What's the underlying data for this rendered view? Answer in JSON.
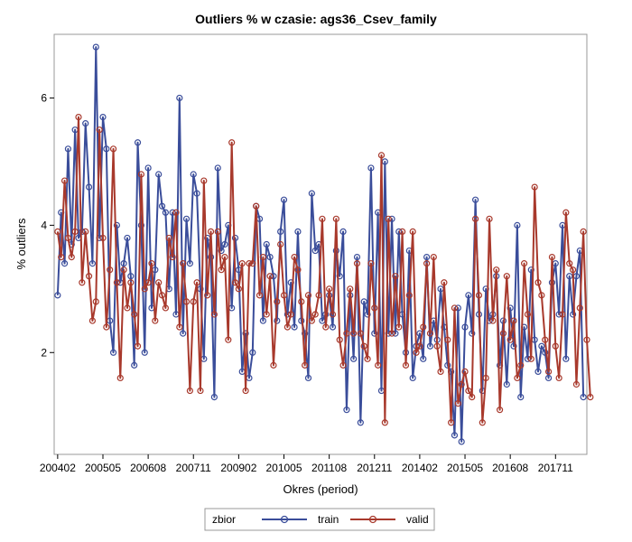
{
  "chart_data": {
    "type": "line",
    "title": "Outliers % w czasie: ags36_Csev_family",
    "xlabel": "Okres (period)",
    "ylabel": "% outliers",
    "xlim": [
      "200401",
      "201809"
    ],
    "ylim": [
      0.4,
      7.0
    ],
    "y_ticks": [
      "2",
      "4",
      "6"
    ],
    "x_ticks": [
      "200402",
      "200505",
      "200608",
      "200711",
      "200902",
      "201005",
      "201108",
      "201211",
      "201402",
      "201505",
      "201608",
      "201711"
    ],
    "x_tick_periods": [
      1,
      14,
      27,
      40,
      53,
      66,
      79,
      92,
      105,
      118,
      131,
      144
    ],
    "period_start": "200402",
    "grid": false,
    "legend": {
      "title": "zbior",
      "position": "bottom-center"
    },
    "series": [
      {
        "name": "train",
        "color": "#3a4d9a",
        "values": [
          2.9,
          4.2,
          3.4,
          5.2,
          3.7,
          5.5,
          3.8,
          3.9,
          5.6,
          4.6,
          3.4,
          6.8,
          3.8,
          5.7,
          5.2,
          2.5,
          2.0,
          4.0,
          3.1,
          3.4,
          3.8,
          3.2,
          1.8,
          5.3,
          4.0,
          2.0,
          4.9,
          2.7,
          3.3,
          4.8,
          4.3,
          4.2,
          3.0,
          4.2,
          2.6,
          6.0,
          2.3,
          4.1,
          3.4,
          4.8,
          4.5,
          3.0,
          1.9,
          3.8,
          3.5,
          1.3,
          4.9,
          3.6,
          3.7,
          4.0,
          2.7,
          3.8,
          3.3,
          1.7,
          2.3,
          1.6,
          2.0,
          4.3,
          4.1,
          2.5,
          3.7,
          3.5,
          3.2,
          2.5,
          3.9,
          4.4,
          2.6,
          3.1,
          2.4,
          3.9,
          2.5,
          2.3,
          1.6,
          4.5,
          3.6,
          3.7,
          2.5,
          2.6,
          2.9,
          2.4,
          3.6,
          3.2,
          3.9,
          1.1,
          2.9,
          1.9,
          3.5,
          0.9,
          2.8,
          2.6,
          4.9,
          2.3,
          4.2,
          1.4,
          5.0,
          2.3,
          4.1,
          2.3,
          3.9,
          2.6,
          2.0,
          3.6,
          1.6,
          2.1,
          2.3,
          1.9,
          3.5,
          2.1,
          2.5,
          2.2,
          3.0,
          2.4,
          1.8,
          1.7,
          0.7,
          2.7,
          0.6,
          2.4,
          2.9,
          2.3,
          4.4,
          2.6,
          1.4,
          3.0,
          2.5,
          2.6,
          3.2,
          1.8,
          2.5,
          1.5,
          2.7,
          2.1,
          4.0,
          1.3,
          2.4,
          1.9,
          3.3,
          2.2,
          1.7,
          2.1,
          2.0,
          1.6,
          3.1,
          3.4,
          2.6,
          4.0,
          1.9,
          3.2,
          2.6,
          3.2,
          3.6,
          1.3
        ]
      },
      {
        "name": "valid",
        "color": "#a8392c",
        "values": [
          3.9,
          3.5,
          4.7,
          3.8,
          3.5,
          3.9,
          5.7,
          3.1,
          3.9,
          3.2,
          2.5,
          2.8,
          5.5,
          3.8,
          2.4,
          3.3,
          5.2,
          3.1,
          1.6,
          3.3,
          2.7,
          3.1,
          2.6,
          2.1,
          4.8,
          3.0,
          3.1,
          3.4,
          2.5,
          3.1,
          2.9,
          2.7,
          3.8,
          3.5,
          4.2,
          2.4,
          3.4,
          2.8,
          1.4,
          2.8,
          3.1,
          1.4,
          4.7,
          2.9,
          3.9,
          2.6,
          3.9,
          3.3,
          3.5,
          2.2,
          5.3,
          3.1,
          3.0,
          3.4,
          1.4,
          3.4,
          3.4,
          4.3,
          2.9,
          3.5,
          2.6,
          3.2,
          1.8,
          2.8,
          3.7,
          2.9,
          2.4,
          2.6,
          3.5,
          3.3,
          2.8,
          1.8,
          2.9,
          2.5,
          2.6,
          2.9,
          4.1,
          2.4,
          3.0,
          2.6,
          4.1,
          2.2,
          1.8,
          2.3,
          3.0,
          2.3,
          3.4,
          2.3,
          2.1,
          1.9,
          3.4,
          2.7,
          1.8,
          5.1,
          0.9,
          4.1,
          2.3,
          3.2,
          2.4,
          3.9,
          1.8,
          2.9,
          3.9,
          2.0,
          2.1,
          2.4,
          3.4,
          2.3,
          3.5,
          2.1,
          1.7,
          3.1,
          2.2,
          0.9,
          2.7,
          1.2,
          1.5,
          1.7,
          1.4,
          1.3,
          4.1,
          2.9,
          0.9,
          1.6,
          4.1,
          2.5,
          3.3,
          1.1,
          2.3,
          3.2,
          2.2,
          2.5,
          1.6,
          1.8,
          3.4,
          2.6,
          1.9,
          4.6,
          3.1,
          2.9,
          2.2,
          1.7,
          3.5,
          2.1,
          1.6,
          2.6,
          4.2,
          3.4,
          3.3,
          1.5,
          2.7,
          3.9,
          2.2,
          1.3
        ]
      }
    ]
  }
}
